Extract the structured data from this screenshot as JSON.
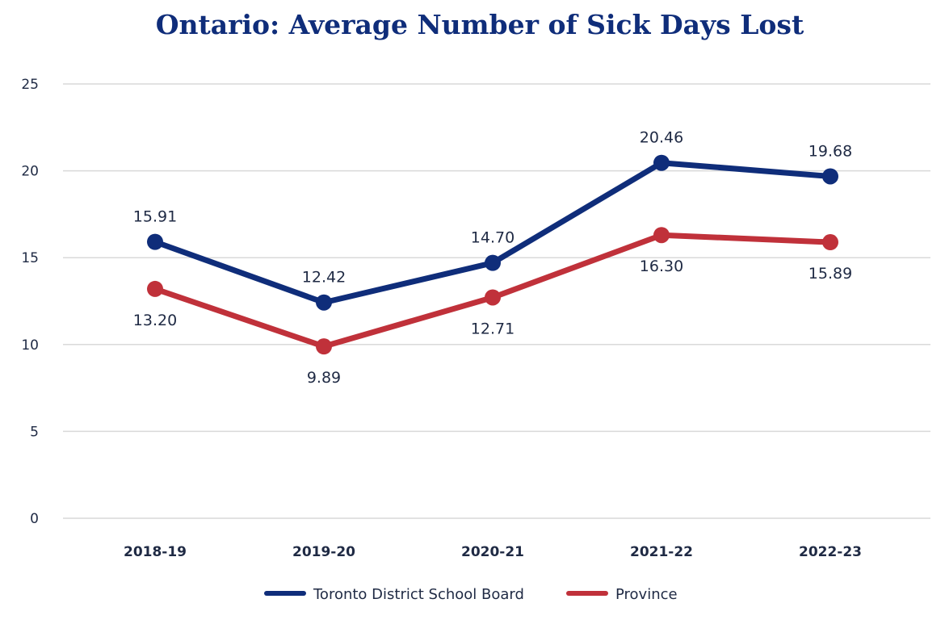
{
  "chart_data": {
    "type": "line",
    "title": "Ontario: Average Number of Sick Days Lost",
    "xlabel": "",
    "ylabel": "",
    "categories": [
      "2018-19",
      "2019-20",
      "2020-21",
      "2021-22",
      "2022-23"
    ],
    "ylim": [
      0,
      25
    ],
    "yticks": [
      "0",
      "5",
      "10",
      "15",
      "20",
      "25"
    ],
    "grid": true,
    "legend_position": "bottom",
    "series": [
      {
        "name": "Toronto District School Board",
        "color": "#0f2d7a",
        "values": [
          15.91,
          12.42,
          14.7,
          20.46,
          19.68
        ],
        "labels": [
          "15.91",
          "12.42",
          "14.70",
          "20.46",
          "19.68"
        ],
        "label_position": "above"
      },
      {
        "name": "Province",
        "color": "#c0313a",
        "values": [
          13.2,
          9.89,
          12.71,
          16.3,
          15.89
        ],
        "labels": [
          "13.20",
          "9.89",
          "12.71",
          "16.30",
          "15.89"
        ],
        "label_position": "below"
      }
    ],
    "title_color": "#0f2d7a",
    "grid_color": "#d9d9d9"
  }
}
